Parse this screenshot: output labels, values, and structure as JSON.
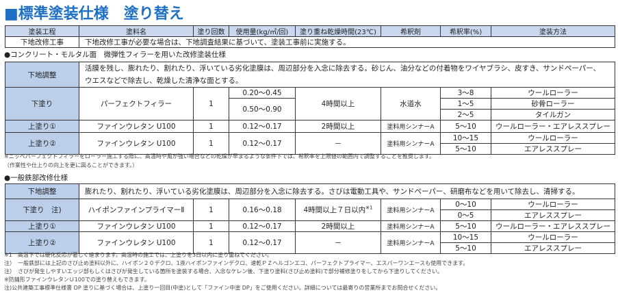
{
  "title": "■標準塗装仕様　塗り替え",
  "header": [
    "塗装工程",
    "塗料名",
    "塗り回数",
    "使用量(kg/㎡/回)",
    "塗り重ね乾燥時間(23℃)",
    "希釈剤",
    "希釈率(%)",
    "塗装方法"
  ],
  "pre": {
    "step": "下地改修工事",
    "text": "下地改修工事が必要な場合は、下地調査結果に基づいて、塗装工事前に実施する。"
  },
  "section1": {
    "heading": "●コンクリート・モルタル面　微弾性フィラーを用いた改修塗装仕様",
    "prep": {
      "step": "下地調整",
      "text1": "活膜を残し、膨れたり、割れたり、浮いている劣化塗膜は、周辺部分を入念に除去する。砂じん、油分などの付着物をワイヤブラシ、皮すき、サンドペーパー、",
      "text2": "ウエスなどで除去し、乾燥した清浄な面とする。"
    },
    "under": {
      "step": "下塗り",
      "paint": "パーフェクトフィラー",
      "coats": "1",
      "usage1": "0.20～0.45",
      "usage2": "0.50～0.90",
      "dry": "4時間以上",
      "thinner": "水道水",
      "rates": [
        "3～8",
        "1～5",
        "2～5"
      ],
      "methods": [
        "ウールローラー",
        "砂骨ローラー",
        "タイルガン"
      ]
    },
    "top1": {
      "step": "上塗り①",
      "paint": "ファインウレタン U100",
      "coats": "1",
      "usage": "0.12～0.17",
      "dry": "2時間以上",
      "thinner": "塗料用シンナーA",
      "rate": "5～10",
      "method": "ウールローラー・エアレススプレー"
    },
    "top2": {
      "step": "上塗り②",
      "paint": "ファインウレタン U100",
      "coats": "1",
      "usage": "0.12～0.17",
      "dry": "－",
      "thinner": "塗料用シンナーA",
      "rates": [
        "10～15",
        "5～10"
      ],
      "methods": [
        "ウールローラー",
        "エアレススプレー"
      ]
    },
    "notes": [
      "※ニッペパーフェクトフィラーをローラー施工する際に、高温時や風が強い場合などの乾燥が早まるような条件下では、希釈率を上限値の範囲内で調整することを推奨します。",
      "（作業性や仕上りの向上を更に図ることができます。）"
    ]
  },
  "section2": {
    "heading": "●一般鉄部改修仕様",
    "prep": {
      "step": "下地調整",
      "text": "膨れたり、割れたり、浮いている劣化塗膜は、周辺部分を入念に除去する。さびは電動工具や、サンドペーパー、研磨布などを用いて除去し、清掃する。"
    },
    "under": {
      "step": "下塗り　注)",
      "paint": "ハイポンファインプライマーⅡ",
      "coats": "1",
      "usage": "0.16～0.18",
      "dry": "4時間以上７日以内",
      "dry_mark": "※1",
      "thinner": "塗料用シンナーA",
      "rates": [
        "0～10",
        "0～5"
      ],
      "methods": [
        "ウールローラー",
        "エアレススプレー"
      ]
    },
    "top1": {
      "step": "上塗り①",
      "paint": "ファインウレタン U100",
      "coats": "1",
      "usage": "0.12～0.17",
      "dry": "2時間以上",
      "thinner": "塗料用シンナーA",
      "rate": "5～10",
      "method": "ウールローラー・エアレススプレー"
    },
    "top2": {
      "step": "上塗り②",
      "paint": "ファインウレタン U100",
      "coats": "1",
      "usage": "0.12～0.17",
      "dry": "－",
      "thinner": "塗料用シンナーA",
      "rates": [
        "10～15",
        "5～10"
      ],
      "methods": [
        "ウールローラー",
        "エアレススプレー"
      ]
    },
    "notes": [
      "※1　高温下では硬化反応が著しく速まります。高温時の施工では、上塗りを3日以内に塗り重ねてください。",
      "注）　一般鉄部には上記のさび止め塗料以外に、ハイポン２０デクロ、1液ハイポンファインデクロ、速乾ＰＺヘルゴンエコ、パーフェクトプライマー、エスパーワンエースも使用できます。",
      "注）　さびが発生しやすいエッジ部もしくはさびが発生している箇所を塗装する場合、入念なケレン後、下塗り塗料(さび止め塗料)で部分補修塗りをしてから下塗りしてください。",
      "※防錆形ファインウレタンＵ100での塗り替えもできます。",
      "注)公共建築工事標準仕様書 DP 塗りに基づく場合は、上塗り一回目(中塗)として「ファイン中塗 DP」をご使用ください。詳細については最寄りの営業所までお問合せください。"
    ]
  },
  "colors": {
    "title": "#1f6fc4",
    "header_bg": "#c9d8ee",
    "step_bg": "#bccfea"
  }
}
